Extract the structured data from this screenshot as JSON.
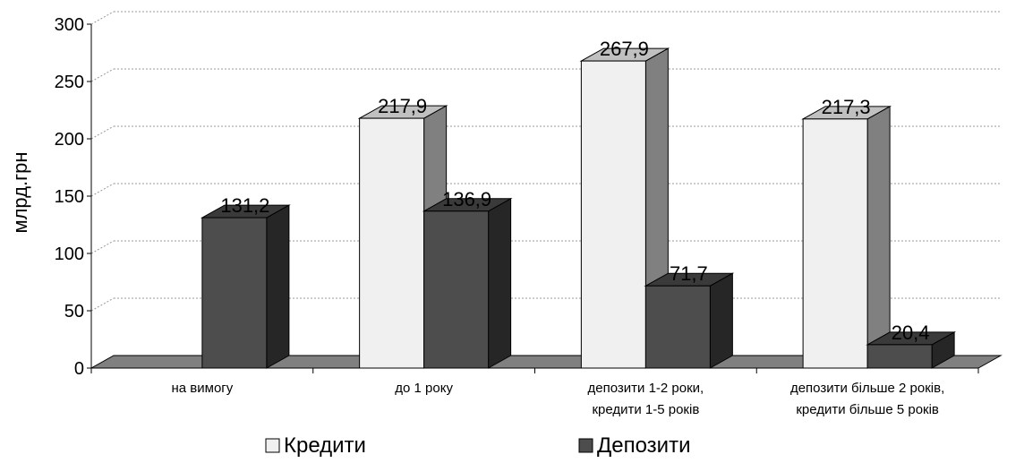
{
  "chart_data": {
    "type": "bar",
    "title": "",
    "ylabel": "млрд.грн",
    "xlabel": "",
    "ylim": [
      0,
      300
    ],
    "yticks": [
      0,
      50,
      100,
      150,
      200,
      250,
      300
    ],
    "grid": true,
    "categories": [
      [
        "на вимогу"
      ],
      [
        "до 1 року"
      ],
      [
        "депозити 1-2 роки,",
        "кредити 1-5 років"
      ],
      [
        "депозити більше 2 років,",
        "кредити більше 5 років"
      ]
    ],
    "series": [
      {
        "name": "Кредити",
        "color": "#f0f0f0",
        "values": [
          null,
          217.9,
          267.9,
          217.3
        ],
        "labels": [
          "",
          "217,9",
          "267,9",
          "217,3"
        ]
      },
      {
        "name": "Депозити",
        "color": "#4d4d4d",
        "values": [
          131.2,
          136.9,
          71.7,
          20.4
        ],
        "labels": [
          "131,2",
          "136,9",
          "71,7",
          "20,4"
        ]
      }
    ],
    "legend_position": "bottom"
  }
}
